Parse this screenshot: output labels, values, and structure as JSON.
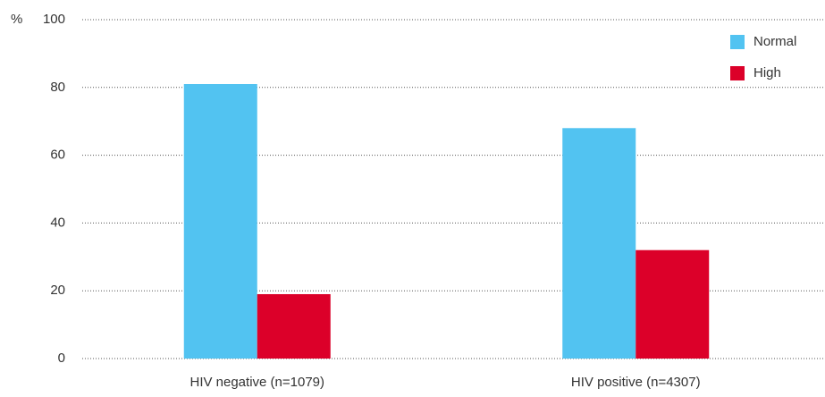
{
  "chart_data": {
    "type": "bar",
    "y_label": "%",
    "categories": [
      "HIV negative (n=1079)",
      "HIV positive (n=4307)"
    ],
    "series": [
      {
        "name": "Normal",
        "color": "#52c3f1",
        "values": [
          81,
          68
        ]
      },
      {
        "name": "High",
        "color": "#dc0029",
        "values": [
          19,
          32
        ]
      }
    ],
    "ylim": [
      0,
      100
    ],
    "yticks": [
      0,
      20,
      40,
      60,
      80,
      100
    ],
    "grid": true,
    "legend": "top-right"
  }
}
